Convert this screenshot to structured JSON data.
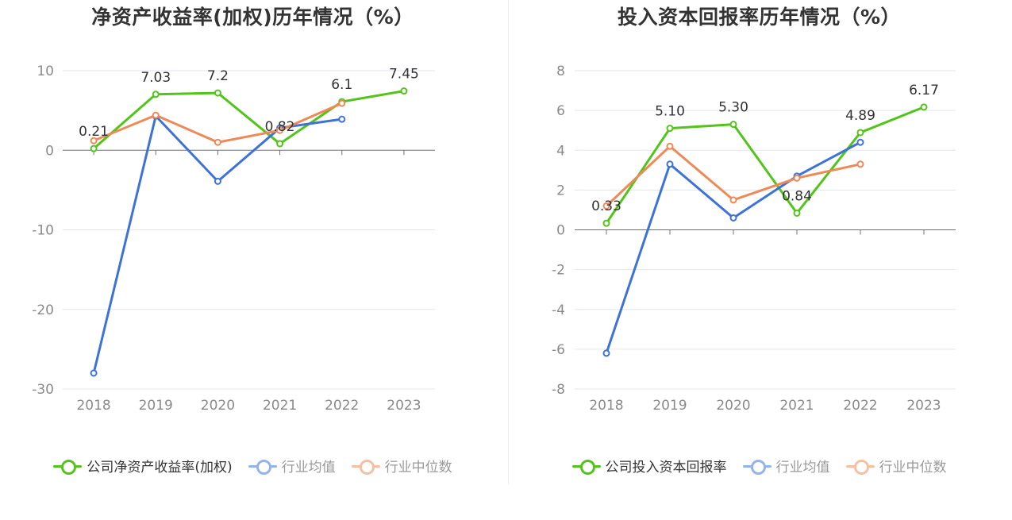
{
  "colors": {
    "company": "#52c41a",
    "average": "#3d72d8",
    "median": "#ee8a58",
    "average_legend": "#93b3ea",
    "median_legend": "#f5bfa4"
  },
  "charts": [
    {
      "title": "净资产收益率(加权)历年情况（%）",
      "legend": [
        "公司净资产收益率(加权)",
        "行业均值",
        "行业中位数"
      ]
    },
    {
      "title": "投入资本回报率历年情况（%）",
      "legend": [
        "公司投入资本回报率",
        "行业均值",
        "行业中位数"
      ]
    }
  ],
  "chart_data": [
    {
      "type": "line",
      "title": "净资产收益率(加权)历年情况（%）",
      "categories": [
        "2018",
        "2019",
        "2020",
        "2021",
        "2022",
        "2023"
      ],
      "ylim": [
        -30,
        10
      ],
      "yticks": [
        10,
        0,
        -10,
        -20,
        -30
      ],
      "grid": true,
      "legend_position": "bottom",
      "series": [
        {
          "name": "公司净资产收益率(加权)",
          "values": [
            0.21,
            7.03,
            7.2,
            0.82,
            6.1,
            7.45
          ],
          "labels": [
            "0.21",
            "7.03",
            "7.2",
            "0.82",
            "6.1",
            "7.45"
          ]
        },
        {
          "name": "行业均值",
          "values": [
            -28,
            4.3,
            -3.9,
            2.8,
            3.9,
            null
          ]
        },
        {
          "name": "行业中位数",
          "values": [
            1.2,
            4.4,
            1.0,
            2.5,
            5.9,
            null
          ]
        }
      ]
    },
    {
      "type": "line",
      "title": "投入资本回报率历年情况（%）",
      "categories": [
        "2018",
        "2019",
        "2020",
        "2021",
        "2022",
        "2023"
      ],
      "ylim": [
        -8,
        8
      ],
      "yticks": [
        8,
        6,
        4,
        2,
        0,
        -2,
        -4,
        -6,
        -8
      ],
      "grid": true,
      "legend_position": "bottom",
      "series": [
        {
          "name": "公司投入资本回报率",
          "values": [
            0.33,
            5.1,
            5.3,
            0.84,
            4.89,
            6.17
          ],
          "labels": [
            "0.33",
            "5.10",
            "5.30",
            "0.84",
            "4.89",
            "6.17"
          ]
        },
        {
          "name": "行业均值",
          "values": [
            -6.2,
            3.3,
            0.6,
            2.7,
            4.4,
            null
          ]
        },
        {
          "name": "行业中位数",
          "values": [
            1.2,
            4.2,
            1.5,
            2.6,
            3.3,
            null
          ]
        }
      ]
    }
  ]
}
